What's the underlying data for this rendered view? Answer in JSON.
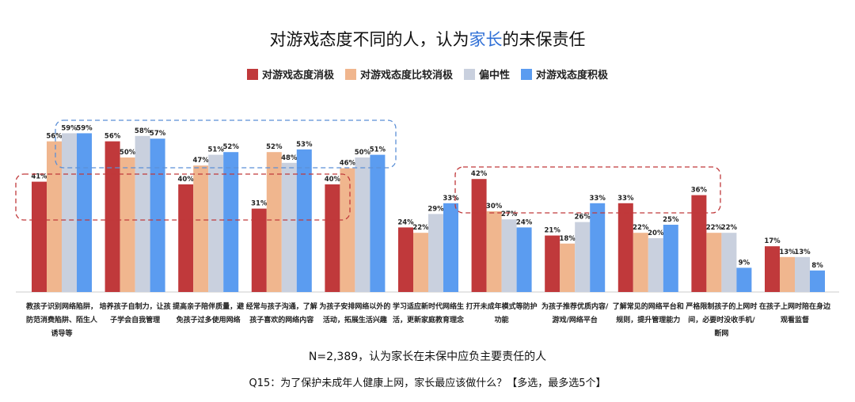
{
  "chart_data": {
    "type": "bar",
    "title_parts": [
      "对游戏态度不同的人，认为",
      "家长",
      "的未保责任"
    ],
    "categories": [
      "教孩子识别网络陷阱，防范消费陷阱、陌生人诱导等",
      "培养孩子自制力，让孩子学会自我管理",
      "提高亲子陪伴质量，避免孩子过多使用网络",
      "经常与孩子沟通，了解孩子喜欢的网络内容",
      "为孩子安排网络以外的活动，拓展生活兴趣",
      "学习适应新时代网络生活，更新家庭教育理念",
      "打开未成年模式等防护功能",
      "为孩子推荐优质内容/游戏/网络平台",
      "了解常见的网络平台和规则，提升管理能力",
      "严格限制孩子的上网时间，必要时没收手机/断网",
      "在孩子上网时陪在身边观看监督"
    ],
    "series": [
      {
        "name": "对游戏态度消极",
        "color": "#c0393b",
        "values": [
          41,
          56,
          40,
          31,
          40,
          24,
          42,
          21,
          33,
          36,
          17
        ]
      },
      {
        "name": "对游戏态度比较消极",
        "color": "#f0b68e",
        "values": [
          56,
          50,
          47,
          52,
          46,
          22,
          30,
          18,
          22,
          22,
          13
        ]
      },
      {
        "name": "偏中性",
        "color": "#c9d0de",
        "values": [
          59,
          58,
          51,
          48,
          50,
          29,
          27,
          26,
          20,
          22,
          13
        ]
      },
      {
        "name": "对游戏态度积极",
        "color": "#5b9cf0",
        "values": [
          59,
          57,
          52,
          53,
          51,
          33,
          24,
          33,
          25,
          9,
          8
        ]
      }
    ],
    "unit": "%",
    "ylim": [
      0,
      60
    ],
    "legend": "top",
    "note": "N=2,389，认为家长在未保中应负主要责任的人",
    "question": "Q15：为了保护未成年人健康上网，家长最应该做什么？【多选，最多选5个】"
  }
}
